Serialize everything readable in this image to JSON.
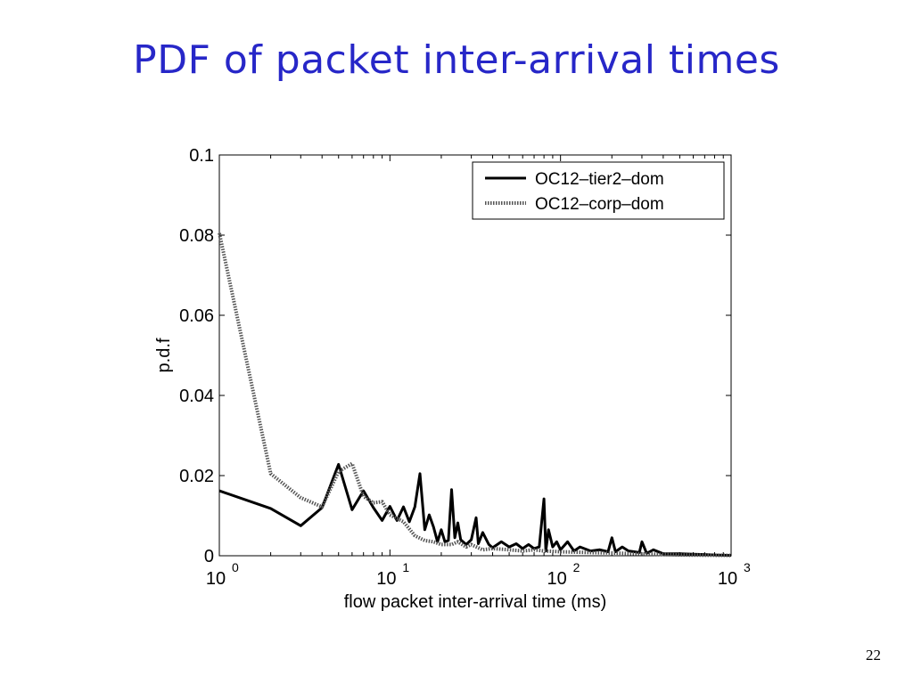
{
  "slide": {
    "title": "PDF of packet inter-arrival times",
    "page_number": "22",
    "title_color": "#2727c8"
  },
  "chart_data": {
    "type": "line",
    "xscale": "log",
    "xlim": [
      1,
      1000
    ],
    "ylim": [
      0,
      0.1
    ],
    "grid": false,
    "legend_position": "top-right",
    "xlabel": "flow packet inter-arrival time (ms)",
    "ylabel": "p.d.f",
    "yticks": [
      0,
      0.02,
      0.04,
      0.06,
      0.08,
      0.1
    ],
    "ytick_labels": [
      "0",
      "0.02",
      "0.04",
      "0.06",
      "0.08",
      "0.1"
    ],
    "xticks": [
      1,
      10,
      100,
      1000
    ],
    "xtick_labels": [
      {
        "base": "10",
        "exp": "0"
      },
      {
        "base": "10",
        "exp": "1"
      },
      {
        "base": "10",
        "exp": "2"
      },
      {
        "base": "10",
        "exp": "3"
      }
    ],
    "series": [
      {
        "name": "OC12–tier2–dom",
        "style": "solid",
        "color": "#000000",
        "x": [
          1,
          2,
          3,
          4,
          5,
          6,
          7,
          8,
          9,
          10,
          11,
          12,
          13,
          14,
          15,
          16,
          17,
          18,
          19,
          20,
          21,
          22,
          23,
          24,
          25,
          26,
          28,
          30,
          32,
          33,
          35,
          38,
          40,
          45,
          50,
          55,
          60,
          65,
          70,
          75,
          80,
          82,
          85,
          90,
          95,
          100,
          110,
          120,
          130,
          150,
          170,
          190,
          200,
          210,
          230,
          250,
          270,
          290,
          300,
          320,
          350,
          400,
          500,
          600,
          700,
          800,
          1000
        ],
        "y": [
          0.0162,
          0.0118,
          0.0075,
          0.012,
          0.0228,
          0.0115,
          0.0162,
          0.012,
          0.0088,
          0.0123,
          0.0088,
          0.0122,
          0.0085,
          0.0122,
          0.0205,
          0.0065,
          0.0102,
          0.0072,
          0.0035,
          0.0065,
          0.0035,
          0.0038,
          0.0165,
          0.0045,
          0.0082,
          0.004,
          0.0028,
          0.004,
          0.0095,
          0.003,
          0.0058,
          0.0028,
          0.002,
          0.0035,
          0.0022,
          0.003,
          0.0018,
          0.0028,
          0.0018,
          0.0022,
          0.0142,
          0.0012,
          0.0065,
          0.0022,
          0.0035,
          0.0015,
          0.0035,
          0.0012,
          0.0022,
          0.0012,
          0.0015,
          0.001,
          0.0045,
          0.001,
          0.0022,
          0.0012,
          0.001,
          0.0008,
          0.0035,
          0.0006,
          0.0015,
          0.0005,
          0.0005,
          0.0004,
          0.0003,
          0.0002,
          0.0001
        ]
      },
      {
        "name": "OC12–corp–dom",
        "style": "dotted",
        "color": "#555555",
        "x": [
          1,
          2,
          3,
          4,
          5,
          6,
          7,
          8,
          9,
          10,
          12,
          14,
          16,
          18,
          20,
          23,
          25,
          28,
          30,
          35,
          40,
          50,
          60,
          70,
          80,
          100,
          150,
          200,
          300,
          500,
          1000
        ],
        "y": [
          0.0805,
          0.0205,
          0.0145,
          0.0122,
          0.021,
          0.023,
          0.0148,
          0.0132,
          0.0135,
          0.0102,
          0.0085,
          0.005,
          0.0038,
          0.0035,
          0.0028,
          0.0028,
          0.0035,
          0.0022,
          0.0028,
          0.0015,
          0.0018,
          0.0015,
          0.0012,
          0.0015,
          0.0012,
          0.001,
          0.0008,
          0.0007,
          0.0005,
          0.0002,
          0.0001
        ]
      }
    ]
  }
}
